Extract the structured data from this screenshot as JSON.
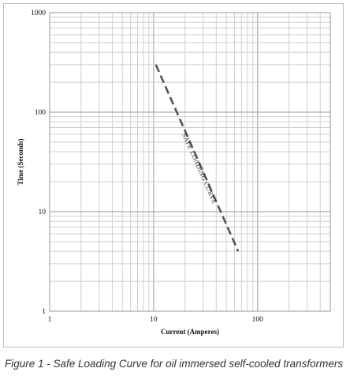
{
  "chart_data": {
    "type": "line",
    "xscale": "log",
    "yscale": "log",
    "xlim": [
      1,
      500
    ],
    "ylim": [
      1,
      1000
    ],
    "xlabel": "Current (Amperes)",
    "ylabel": "Time (Seconds)",
    "x_tick_labels": [
      "1",
      "10",
      "100"
    ],
    "y_tick_labels": [
      "1",
      "10",
      "100",
      "1000"
    ],
    "grid": true,
    "series": [
      {
        "x": [
          10.5,
          65
        ],
        "y": [
          300,
          4
        ],
        "style": "dashed",
        "color": "#555555"
      }
    ],
    "annotations": [
      "SAFE LOADING CURVE"
    ]
  },
  "caption": "Figure 1 - Safe Loading Curve for oil immersed self-cooled transformers"
}
